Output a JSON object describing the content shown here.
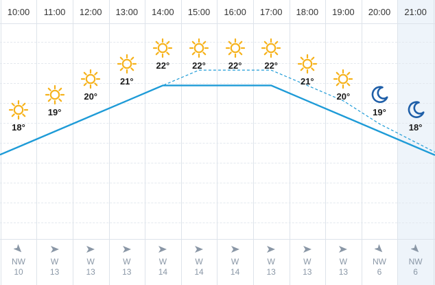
{
  "colors": {
    "sun": "#f6b21b",
    "moon": "#1f5fa8",
    "temp_line": "#1e9bd7",
    "feels_line": "#1e9bd7",
    "night_bg": "#eef4fa",
    "wind_arrow": "#8a97a6"
  },
  "forecast": {
    "hours": [
      {
        "time": "10:00",
        "icon": "sun-icon",
        "temp": "18°",
        "wind_dir": "NW",
        "wind_speed": "10",
        "wind_arrow": "arrow-southeast-icon",
        "night": false
      },
      {
        "time": "11:00",
        "icon": "sun-icon",
        "temp": "19°",
        "wind_dir": "W",
        "wind_speed": "13",
        "wind_arrow": "arrow-east-icon",
        "night": false
      },
      {
        "time": "12:00",
        "icon": "sun-icon",
        "temp": "20°",
        "wind_dir": "W",
        "wind_speed": "13",
        "wind_arrow": "arrow-east-icon",
        "night": false
      },
      {
        "time": "13:00",
        "icon": "sun-icon",
        "temp": "21°",
        "wind_dir": "W",
        "wind_speed": "13",
        "wind_arrow": "arrow-east-icon",
        "night": false
      },
      {
        "time": "14:00",
        "icon": "sun-icon",
        "temp": "22°",
        "wind_dir": "W",
        "wind_speed": "14",
        "wind_arrow": "arrow-east-icon",
        "night": false
      },
      {
        "time": "15:00",
        "icon": "sun-icon",
        "temp": "22°",
        "wind_dir": "W",
        "wind_speed": "14",
        "wind_arrow": "arrow-east-icon",
        "night": false
      },
      {
        "time": "16:00",
        "icon": "sun-icon",
        "temp": "22°",
        "wind_dir": "W",
        "wind_speed": "14",
        "wind_arrow": "arrow-east-icon",
        "night": false
      },
      {
        "time": "17:00",
        "icon": "sun-icon",
        "temp": "22°",
        "wind_dir": "W",
        "wind_speed": "13",
        "wind_arrow": "arrow-east-icon",
        "night": false
      },
      {
        "time": "18:00",
        "icon": "sun-icon",
        "temp": "21°",
        "wind_dir": "W",
        "wind_speed": "13",
        "wind_arrow": "arrow-east-icon",
        "night": false
      },
      {
        "time": "19:00",
        "icon": "sun-icon",
        "temp": "20°",
        "wind_dir": "W",
        "wind_speed": "13",
        "wind_arrow": "arrow-east-icon",
        "night": false
      },
      {
        "time": "20:00",
        "icon": "moon-icon",
        "temp": "19°",
        "wind_dir": "NW",
        "wind_speed": "6",
        "wind_arrow": "arrow-southeast-icon",
        "night": false
      },
      {
        "time": "21:00",
        "icon": "moon-icon",
        "temp": "18°",
        "wind_dir": "NW",
        "wind_speed": "6",
        "wind_arrow": "arrow-southeast-icon",
        "night": true
      }
    ]
  },
  "chart_data": {
    "type": "line",
    "x": [
      "10:00",
      "11:00",
      "12:00",
      "13:00",
      "14:00",
      "15:00",
      "16:00",
      "17:00",
      "18:00",
      "19:00",
      "20:00",
      "21:00"
    ],
    "series": [
      {
        "values": [
          18,
          19,
          20,
          21,
          22,
          22,
          22,
          22,
          21,
          20,
          19,
          18
        ],
        "style": "solid"
      },
      {
        "values": [
          18,
          19,
          20,
          21,
          22,
          23,
          23,
          23,
          22,
          21,
          19.5,
          18.3
        ],
        "style": "dashed"
      }
    ],
    "ylim": [
      12,
      26
    ],
    "grid": true
  }
}
